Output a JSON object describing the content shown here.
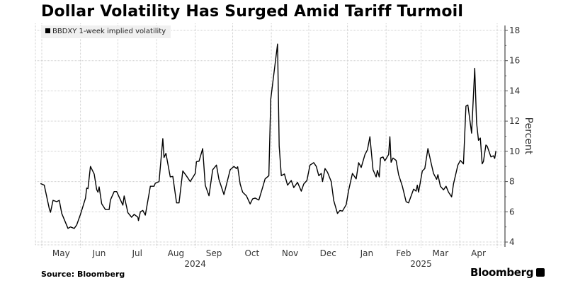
{
  "chart_data": {
    "type": "line",
    "title": "Dollar Volatility Has Surged Amid Tariff Turmoil",
    "legend": [
      "BBDXY 1-week implied volatility"
    ],
    "legend_placement": "top-left",
    "ylabel": "Percent",
    "ylim": [
      4,
      18
    ],
    "yticks": [
      4,
      6,
      8,
      10,
      12,
      14,
      16,
      18
    ],
    "grid": true,
    "x_unit": "days since 2024-05-01",
    "xlim": [
      -5,
      372
    ],
    "month_ticks": [
      {
        "label": "May",
        "start": 0,
        "end": 31
      },
      {
        "label": "Jun",
        "start": 31,
        "end": 61
      },
      {
        "label": "Jul",
        "start": 61,
        "end": 92
      },
      {
        "label": "Aug",
        "start": 92,
        "end": 123
      },
      {
        "label": "Sep",
        "start": 123,
        "end": 153
      },
      {
        "label": "Oct",
        "start": 153,
        "end": 184
      },
      {
        "label": "Nov",
        "start": 184,
        "end": 214
      },
      {
        "label": "Dec",
        "start": 214,
        "end": 245
      },
      {
        "label": "Jan",
        "start": 245,
        "end": 276
      },
      {
        "label": "Feb",
        "start": 276,
        "end": 304
      },
      {
        "label": "Mar",
        "start": 304,
        "end": 335
      },
      {
        "label": "Apr",
        "start": 335,
        "end": 365
      }
    ],
    "year_labels": [
      {
        "label": "2024",
        "at": 123
      },
      {
        "label": "2025",
        "at": 304
      }
    ],
    "series": [
      {
        "name": "BBDXY 1-week implied volatility",
        "color": "#000000",
        "points": [
          [
            -1,
            7.87
          ],
          [
            2,
            7.76
          ],
          [
            6,
            6.2
          ],
          [
            7,
            5.97
          ],
          [
            9,
            6.76
          ],
          [
            12,
            6.67
          ],
          [
            14,
            6.76
          ],
          [
            16,
            5.89
          ],
          [
            21,
            4.9
          ],
          [
            23,
            5.0
          ],
          [
            26,
            4.9
          ],
          [
            28,
            5.13
          ],
          [
            31,
            5.83
          ],
          [
            35,
            6.9
          ],
          [
            36,
            7.57
          ],
          [
            37,
            7.53
          ],
          [
            39,
            9.0
          ],
          [
            42,
            8.5
          ],
          [
            44,
            7.47
          ],
          [
            45,
            7.3
          ],
          [
            46,
            7.65
          ],
          [
            48,
            6.53
          ],
          [
            51,
            6.15
          ],
          [
            54,
            6.15
          ],
          [
            55,
            6.78
          ],
          [
            58,
            7.34
          ],
          [
            60,
            7.34
          ],
          [
            65,
            6.44
          ],
          [
            66,
            7.05
          ],
          [
            69,
            5.94
          ],
          [
            72,
            5.64
          ],
          [
            74,
            5.83
          ],
          [
            77,
            5.65
          ],
          [
            77.5,
            5.42
          ],
          [
            79,
            6.0
          ],
          [
            81,
            6.09
          ],
          [
            83,
            5.78
          ],
          [
            87,
            7.69
          ],
          [
            90,
            7.69
          ],
          [
            91,
            7.89
          ],
          [
            94,
            8.0
          ],
          [
            97,
            10.84
          ],
          [
            98,
            9.59
          ],
          [
            99.5,
            9.87
          ],
          [
            103,
            8.31
          ],
          [
            105,
            8.34
          ],
          [
            108,
            6.59
          ],
          [
            110,
            6.59
          ],
          [
            113,
            8.7
          ],
          [
            116,
            8.37
          ],
          [
            119,
            8.0
          ],
          [
            123,
            8.54
          ],
          [
            124,
            9.32
          ],
          [
            126,
            9.35
          ],
          [
            129,
            10.18
          ],
          [
            131,
            7.76
          ],
          [
            134,
            7.06
          ],
          [
            137,
            8.78
          ],
          [
            140,
            9.09
          ],
          [
            142,
            8.15
          ],
          [
            146,
            7.14
          ],
          [
            151,
            8.78
          ],
          [
            154,
            9.0
          ],
          [
            156,
            8.86
          ],
          [
            157,
            8.98
          ],
          [
            159,
            7.84
          ],
          [
            161,
            7.3
          ],
          [
            164,
            7.06
          ],
          [
            167,
            6.52
          ],
          [
            169,
            6.86
          ],
          [
            171,
            6.91
          ],
          [
            174,
            6.78
          ],
          [
            177,
            7.61
          ],
          [
            179,
            8.18
          ],
          [
            182,
            8.39
          ],
          [
            183.5,
            13.46
          ],
          [
            189,
            17.1
          ],
          [
            190.3,
            10.34
          ],
          [
            192,
            8.39
          ],
          [
            194.5,
            8.5
          ],
          [
            197,
            7.76
          ],
          [
            200,
            8.07
          ],
          [
            202,
            7.6
          ],
          [
            205,
            7.95
          ],
          [
            208,
            7.37
          ],
          [
            210,
            7.84
          ],
          [
            212.5,
            8.07
          ],
          [
            215,
            9.09
          ],
          [
            218,
            9.25
          ],
          [
            220,
            9.0
          ],
          [
            222,
            8.39
          ],
          [
            224,
            8.54
          ],
          [
            225,
            8.0
          ],
          [
            227,
            8.86
          ],
          [
            229,
            8.62
          ],
          [
            232,
            8.0
          ],
          [
            234,
            6.75
          ],
          [
            237,
            5.89
          ],
          [
            239,
            6.09
          ],
          [
            241,
            6.05
          ],
          [
            244,
            6.47
          ],
          [
            246,
            7.45
          ],
          [
            249,
            8.54
          ],
          [
            252,
            8.18
          ],
          [
            254,
            9.25
          ],
          [
            256,
            8.93
          ],
          [
            259,
            9.79
          ],
          [
            261,
            10.1
          ],
          [
            263,
            10.97
          ],
          [
            265.5,
            8.78
          ],
          [
            268,
            8.31
          ],
          [
            269,
            8.74
          ],
          [
            270.5,
            8.31
          ],
          [
            271.5,
            9.56
          ],
          [
            273.5,
            9.63
          ],
          [
            275,
            9.37
          ],
          [
            278,
            9.79
          ],
          [
            279,
            10.97
          ],
          [
            280,
            9.28
          ],
          [
            281.5,
            9.56
          ],
          [
            284,
            9.4
          ],
          [
            286,
            8.46
          ],
          [
            289,
            7.69
          ],
          [
            292,
            6.67
          ],
          [
            294,
            6.59
          ],
          [
            298,
            7.5
          ],
          [
            300,
            7.37
          ],
          [
            301,
            7.76
          ],
          [
            302,
            7.3
          ],
          [
            305,
            8.7
          ],
          [
            307,
            8.86
          ],
          [
            309.5,
            10.18
          ],
          [
            312,
            9.25
          ],
          [
            314,
            8.54
          ],
          [
            316.5,
            8.15
          ],
          [
            317.5,
            8.46
          ],
          [
            319.5,
            7.69
          ],
          [
            322,
            7.45
          ],
          [
            324,
            7.69
          ],
          [
            326,
            7.3
          ],
          [
            328.5,
            6.99
          ],
          [
            330,
            7.84
          ],
          [
            333.5,
            9.09
          ],
          [
            335.5,
            9.4
          ],
          [
            338,
            9.17
          ],
          [
            340,
            12.99
          ],
          [
            341.5,
            13.07
          ],
          [
            344.5,
            11.2
          ],
          [
            347,
            15.49
          ],
          [
            348.5,
            11.9
          ],
          [
            350,
            10.73
          ],
          [
            351.5,
            10.88
          ],
          [
            353,
            9.17
          ],
          [
            354,
            9.33
          ],
          [
            356,
            10.42
          ],
          [
            357,
            10.34
          ],
          [
            360,
            9.63
          ],
          [
            362,
            9.71
          ],
          [
            363,
            9.53
          ],
          [
            364,
            10.03
          ]
        ]
      }
    ]
  },
  "footer": {
    "source": "Source: Bloomberg",
    "logo": "Bloomberg"
  }
}
